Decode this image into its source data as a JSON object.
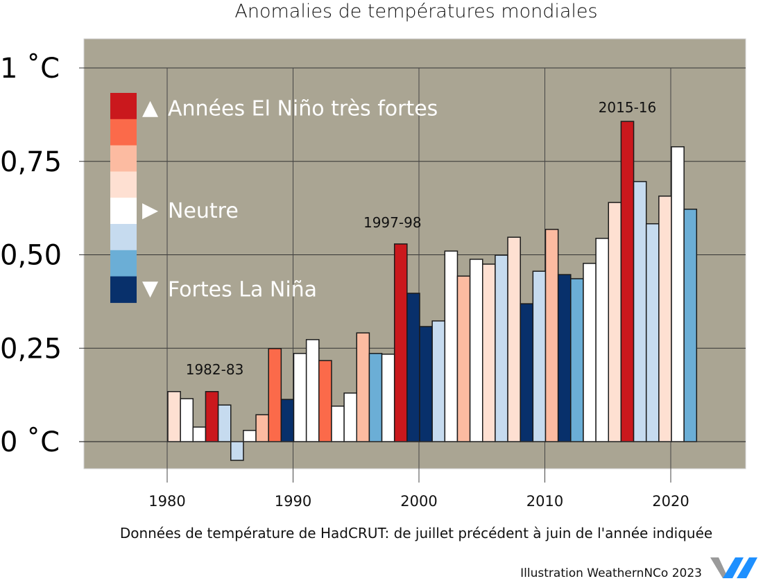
{
  "chart_data": {
    "type": "bar",
    "title": "Anomalies de températures mondiales",
    "xlabel": "Données de température de HadCRUT: de juillet précédent à juin de l'année indiquée",
    "ylabel": "",
    "ylim": [
      -0.07,
      1.08
    ],
    "xlim": [
      1973.5,
      2025.5
    ],
    "grid": true,
    "background_color": "#aaa593",
    "yticks": [
      {
        "value": 0,
        "label": "0 ˚C"
      },
      {
        "value": 0.25,
        "label": "0,25"
      },
      {
        "value": 0.5,
        "label": "0,50"
      },
      {
        "value": 0.75,
        "label": "0,75"
      },
      {
        "value": 1,
        "label": "1 ˚C"
      }
    ],
    "xticks": [
      {
        "value": 1980,
        "label": "1980"
      },
      {
        "value": 1990,
        "label": "1990"
      },
      {
        "value": 2000,
        "label": "2000"
      },
      {
        "value": 2010,
        "label": "2010"
      },
      {
        "value": 2020,
        "label": "2020"
      }
    ],
    "categories_colors": {
      "el_nino_tres_fort": "#ca181d",
      "el_nino_fort": "#fb6a4a",
      "el_nino_modere": "#fcbba1",
      "el_nino_faible": "#fee0d2",
      "neutre": "#ffffff",
      "la_nina_faible": "#c6dbef",
      "la_nina_moderee": "#6baed6",
      "la_nina_forte": "#08306b"
    },
    "legend": {
      "position": "top-left",
      "swatches": [
        "#ca181d",
        "#fb6a4a",
        "#fcbba1",
        "#fee0d2",
        "#ffffff",
        "#c6dbef",
        "#6baed6",
        "#08306b"
      ],
      "labels": [
        {
          "marker": "▲",
          "text": "Années El Niño très fortes"
        },
        {
          "marker": "▶",
          "text": "Neutre"
        },
        {
          "marker": "▼",
          "text": "Fortes La Niña"
        }
      ]
    },
    "annotations": [
      {
        "year": 1983,
        "text": "1982-83"
      },
      {
        "year": 1998,
        "text": "1997-98"
      },
      {
        "year": 2016,
        "text": "2015-16"
      }
    ],
    "series": [
      {
        "name": "Anomalie (°C)",
        "bars": [
          {
            "year": 1980,
            "value": 0.134,
            "category": "el_nino_faible"
          },
          {
            "year": 1981,
            "value": 0.115,
            "category": "neutre"
          },
          {
            "year": 1982,
            "value": 0.039,
            "category": "neutre"
          },
          {
            "year": 1983,
            "value": 0.134,
            "category": "el_nino_tres_fort"
          },
          {
            "year": 1984,
            "value": 0.098,
            "category": "la_nina_faible"
          },
          {
            "year": 1985,
            "value": -0.05,
            "category": "la_nina_faible"
          },
          {
            "year": 1986,
            "value": 0.03,
            "category": "neutre"
          },
          {
            "year": 1987,
            "value": 0.072,
            "category": "el_nino_modere"
          },
          {
            "year": 1988,
            "value": 0.249,
            "category": "el_nino_fort"
          },
          {
            "year": 1989,
            "value": 0.113,
            "category": "la_nina_forte"
          },
          {
            "year": 1990,
            "value": 0.236,
            "category": "neutre"
          },
          {
            "year": 1991,
            "value": 0.273,
            "category": "neutre"
          },
          {
            "year": 1992,
            "value": 0.217,
            "category": "el_nino_fort"
          },
          {
            "year": 1993,
            "value": 0.095,
            "category": "neutre"
          },
          {
            "year": 1994,
            "value": 0.13,
            "category": "neutre"
          },
          {
            "year": 1995,
            "value": 0.291,
            "category": "el_nino_modere"
          },
          {
            "year": 1996,
            "value": 0.236,
            "category": "la_nina_moderee"
          },
          {
            "year": 1997,
            "value": 0.234,
            "category": "neutre"
          },
          {
            "year": 1998,
            "value": 0.529,
            "category": "el_nino_tres_fort"
          },
          {
            "year": 1999,
            "value": 0.397,
            "category": "la_nina_forte"
          },
          {
            "year": 2000,
            "value": 0.308,
            "category": "la_nina_forte"
          },
          {
            "year": 2001,
            "value": 0.323,
            "category": "la_nina_faible"
          },
          {
            "year": 2002,
            "value": 0.51,
            "category": "neutre"
          },
          {
            "year": 2003,
            "value": 0.443,
            "category": "el_nino_modere"
          },
          {
            "year": 2004,
            "value": 0.488,
            "category": "neutre"
          },
          {
            "year": 2005,
            "value": 0.475,
            "category": "el_nino_faible"
          },
          {
            "year": 2006,
            "value": 0.499,
            "category": "la_nina_faible"
          },
          {
            "year": 2007,
            "value": 0.547,
            "category": "el_nino_faible"
          },
          {
            "year": 2008,
            "value": 0.369,
            "category": "la_nina_forte"
          },
          {
            "year": 2009,
            "value": 0.456,
            "category": "la_nina_faible"
          },
          {
            "year": 2010,
            "value": 0.568,
            "category": "el_nino_modere"
          },
          {
            "year": 2011,
            "value": 0.447,
            "category": "la_nina_forte"
          },
          {
            "year": 2012,
            "value": 0.436,
            "category": "la_nina_moderee"
          },
          {
            "year": 2013,
            "value": 0.477,
            "category": "neutre"
          },
          {
            "year": 2014,
            "value": 0.544,
            "category": "neutre"
          },
          {
            "year": 2015,
            "value": 0.64,
            "category": "el_nino_faible"
          },
          {
            "year": 2016,
            "value": 0.857,
            "category": "el_nino_tres_fort"
          },
          {
            "year": 2017,
            "value": 0.696,
            "category": "la_nina_faible"
          },
          {
            "year": 2018,
            "value": 0.583,
            "category": "la_nina_faible"
          },
          {
            "year": 2019,
            "value": 0.657,
            "category": "el_nino_faible"
          },
          {
            "year": 2020,
            "value": 0.789,
            "category": "neutre"
          },
          {
            "year": 2021,
            "value": 0.622,
            "category": "la_nina_moderee"
          }
        ]
      }
    ]
  },
  "footer": {
    "credit": "Illustration WeathernNCo 2023",
    "logo": "weatherncco-w-logo-icon",
    "logo_colors": [
      "#9a9a9a",
      "#1e90ff"
    ]
  }
}
